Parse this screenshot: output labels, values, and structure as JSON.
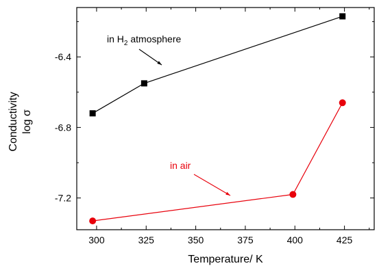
{
  "chart_data": {
    "type": "line",
    "xlabel": "Temperature/ K",
    "ylabel_line1": "Conductivity",
    "ylabel_line2": "log σ",
    "xlim": [
      290,
      440
    ],
    "ylim": [
      -7.38,
      -6.12
    ],
    "x_ticks": [
      300,
      325,
      350,
      375,
      400,
      425
    ],
    "y_ticks": [
      -6.4,
      -6.8,
      -7.2
    ],
    "x_tick_labels": [
      "300",
      "325",
      "350",
      "375",
      "400",
      "425"
    ],
    "y_tick_labels": [
      "-6.4",
      "-6.8",
      "-7.2"
    ],
    "grid": false,
    "series": [
      {
        "marker": "square",
        "color": "#000000",
        "x": [
          298,
          324,
          424
        ],
        "y": [
          -6.72,
          -6.55,
          -6.17
        ]
      },
      {
        "marker": "circle",
        "color": "#e8000b",
        "x": [
          298,
          399,
          424
        ],
        "y": [
          -7.33,
          -7.18,
          -6.66
        ]
      }
    ],
    "annotations": [
      {
        "text_main": "in H",
        "text_sub": "2",
        "text_after": " atmosphere",
        "color": "#000000",
        "series_index": 0
      },
      {
        "text_main": "in air",
        "color": "#e8000b",
        "series_index": 1
      }
    ]
  }
}
